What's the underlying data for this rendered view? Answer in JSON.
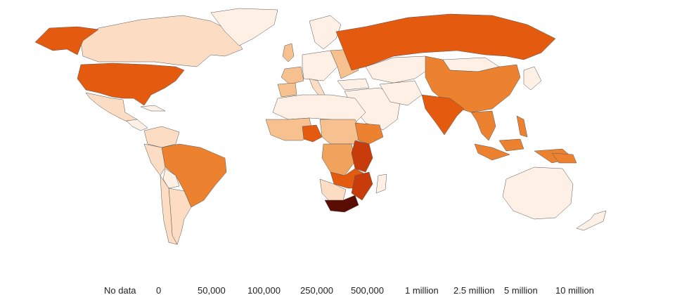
{
  "legend": {
    "labels": [
      "No data",
      "0",
      "50,000",
      "100,000",
      "250,000",
      "500,000",
      "1 million",
      "2.5 million",
      "5 million",
      "10 million"
    ],
    "colors": [
      "#f3f3f3",
      "#fef0e4",
      "#fcdcc2",
      "#f7c08f",
      "#f1a35e",
      "#ec8230",
      "#e45a0f",
      "#c73c0a",
      "#8e1c04",
      "#5a0d02"
    ]
  },
  "colors": {
    "background": "#ffffff",
    "country_border": "#555555",
    "ocean": "#ffffff"
  }
}
